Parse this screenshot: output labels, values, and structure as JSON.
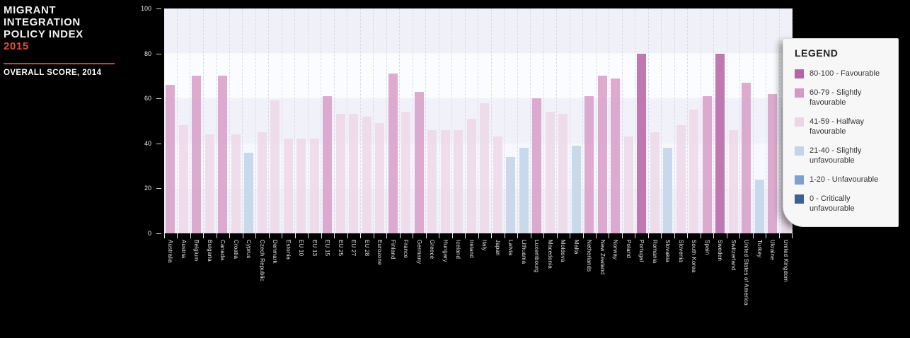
{
  "header": {
    "title_line1": "MIGRANT",
    "title_line2": "INTEGRATION",
    "title_line3": "POLICY INDEX",
    "title_year": "2015",
    "subtitle": "OVERALL SCORE, 2014"
  },
  "legend": {
    "title": "LEGEND",
    "items": [
      {
        "label": "80-100 - Favourable",
        "color": "#b766a5"
      },
      {
        "label": "60-79 - Slightly favourable",
        "color": "#d598c3"
      },
      {
        "label": "41-59 - Halfway favourable",
        "color": "#ecd6e6"
      },
      {
        "label": "21-40 - Slightly unfavourable",
        "color": "#c3d4e8"
      },
      {
        "label": "1-20 - Unfavourable",
        "color": "#7f9fcd"
      },
      {
        "label": "0 - Critically unfavourable",
        "color": "#3e6191"
      }
    ]
  },
  "chart_data": {
    "type": "bar",
    "title": "Migrant Integration Policy Index 2015 - Overall score, 2014",
    "xlabel": "",
    "ylabel": "",
    "ylim": [
      0,
      100
    ],
    "yticks": [
      0,
      20,
      40,
      60,
      80,
      100
    ],
    "grid": "horizontal-bands",
    "legend_position": "right-overlay",
    "categories": [
      "Australia",
      "Austria",
      "Belgium",
      "Bulgaria",
      "Canada",
      "Croatia",
      "Cyprus",
      "Czech Republic",
      "Denmark",
      "Estonia",
      "EU 10",
      "EU 13",
      "EU 15",
      "EU 25",
      "EU 27",
      "EU 28",
      "Eurozone",
      "Finland",
      "France",
      "Germany",
      "Greece",
      "Hungary",
      "Iceland",
      "Ireland",
      "Italy",
      "Japan",
      "Latvia",
      "Lithuania",
      "Luxembourg",
      "Macedonia",
      "Moldova",
      "Malta",
      "Netherlands",
      "New Zealand",
      "Norway",
      "Poland",
      "Portugal",
      "Romania",
      "Slovakia",
      "Slovenia",
      "South Korea",
      "Spain",
      "Sweden",
      "Switzerland",
      "United States of America",
      "Turkey",
      "Ukraine",
      "United Kingdom"
    ],
    "values": [
      66,
      48,
      70,
      44,
      70,
      44,
      36,
      45,
      59,
      42,
      42,
      42,
      61,
      53,
      53,
      52,
      49,
      71,
      54,
      63,
      46,
      46,
      46,
      51,
      58,
      43,
      34,
      38,
      60,
      54,
      53,
      39,
      61,
      70,
      69,
      43,
      80,
      45,
      38,
      48,
      55,
      61,
      80,
      46,
      67,
      24,
      62,
      56
    ],
    "color_buckets": [
      {
        "min": 80,
        "color": "#b766a5"
      },
      {
        "min": 60,
        "color": "#d99fc8"
      },
      {
        "min": 41,
        "color": "#eed8e8"
      },
      {
        "min": 21,
        "color": "#c3d4e8"
      },
      {
        "min": 1,
        "color": "#7f9fcd"
      },
      {
        "min": 0,
        "color": "#3e6191"
      }
    ]
  }
}
